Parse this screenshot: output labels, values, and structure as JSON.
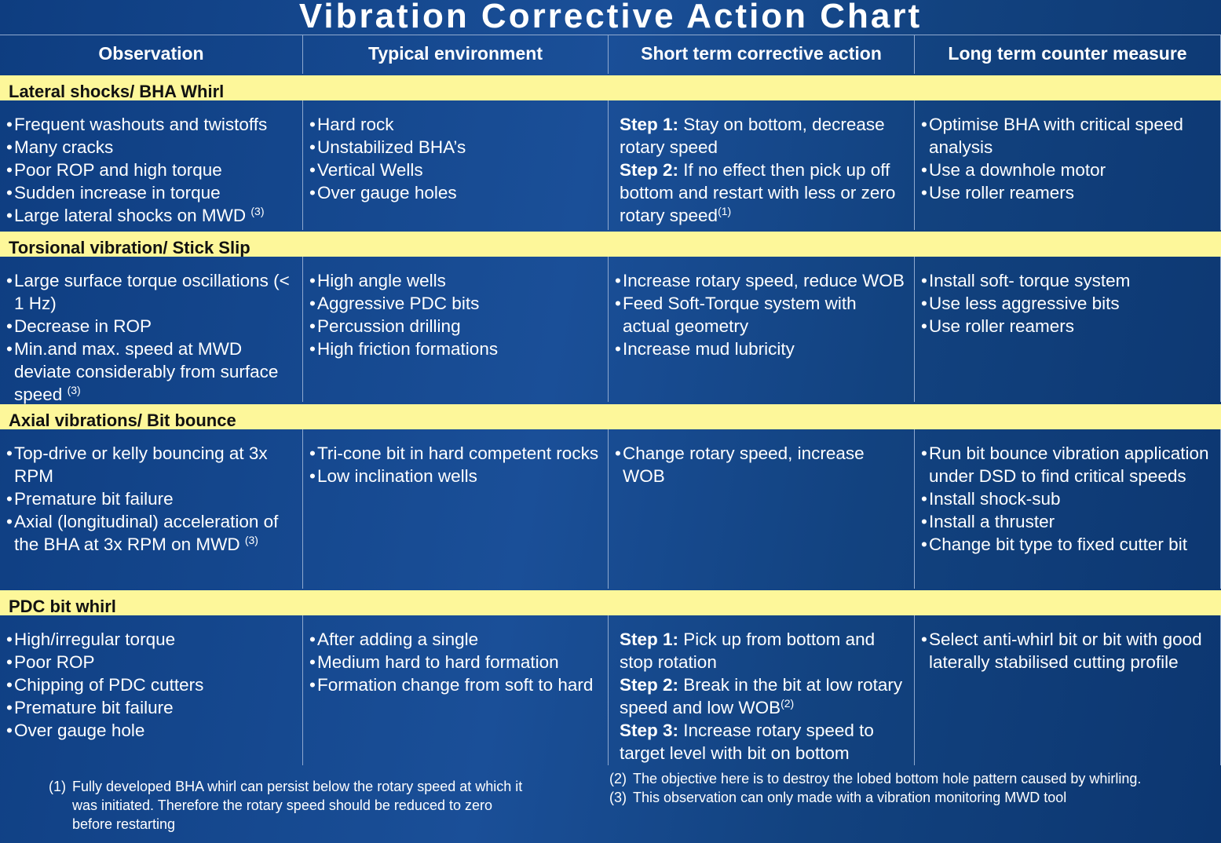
{
  "title": "Vibration Corrective Action Chart",
  "headers": [
    "Observation",
    "Typical environment",
    "Short term corrective action",
    "Long term counter measure"
  ],
  "sections": [
    {
      "title": "Lateral shocks/ BHA Whirl",
      "cells": [
        [
          "Frequent washouts and twistoffs",
          "Many cracks",
          "Poor ROP and high torque",
          "Sudden increase in torque",
          {
            "text": "Large lateral shocks on MWD",
            "sup": "(3)"
          }
        ],
        [
          "Hard rock",
          "Unstabilized BHA’s",
          "Vertical Wells",
          "Over gauge holes"
        ],
        [
          {
            "step": "Step 1:",
            "text": "Stay on bottom, decrease rotary speed"
          },
          {
            "step": "Step 2:",
            "text": "If no effect then pick up off bottom and restart with less or zero rotary speed",
            "sup": "(1)"
          }
        ],
        [
          "Optimise BHA with critical speed analysis",
          "Use a downhole motor",
          "Use roller reamers"
        ]
      ]
    },
    {
      "title": "Torsional vibration/ Stick Slip",
      "cells": [
        [
          "Large surface torque oscillations (< 1 Hz)",
          "Decrease in ROP",
          {
            "text": "Min.and max. speed at MWD deviate considerably from surface speed",
            "sup": "(3)"
          }
        ],
        [
          "High angle wells",
          "Aggressive PDC bits",
          "Percussion drilling",
          "High friction formations"
        ],
        [
          "Increase rotary speed, reduce WOB",
          "Feed Soft-Torque system with actual geometry",
          "Increase mud lubricity"
        ],
        [
          "Install soft- torque system",
          "Use less aggressive bits",
          "Use roller reamers"
        ]
      ]
    },
    {
      "title": "Axial vibrations/ Bit bounce",
      "cells": [
        [
          "Top-drive or kelly bouncing at 3x RPM",
          "Premature bit failure",
          {
            "text": "Axial (longitudinal) acceleration of the BHA at 3x RPM on MWD",
            "sup": "(3)"
          }
        ],
        [
          "Tri-cone bit in hard competent rocks",
          "Low inclination wells"
        ],
        [
          "Change rotary speed, increase WOB"
        ],
        [
          "Run bit bounce vibration application under DSD to find critical speeds",
          "Install shock-sub",
          "Install a thruster",
          "Change bit type to fixed cutter bit"
        ]
      ]
    },
    {
      "title": "PDC bit whirl",
      "cells": [
        [
          "High/irregular torque",
          "Poor ROP",
          "Chipping of PDC cutters",
          "Premature bit failure",
          "Over gauge hole"
        ],
        [
          "After adding a single",
          "Medium hard to hard formation",
          "Formation change from soft to hard"
        ],
        [
          {
            "step": "Step 1:",
            "text": "Pick up from bottom and stop rotation"
          },
          {
            "step": "Step 2:",
            "text": "Break in the bit at low rotary speed and low WOB",
            "sup": "(2)"
          },
          {
            "step": "Step 3:",
            "text": "Increase rotary speed to target level with bit on bottom"
          }
        ],
        [
          "Select anti-whirl bit or bit with good laterally stabilised cutting profile"
        ]
      ]
    }
  ],
  "footnotes": {
    "left": [
      {
        "label": "(1)",
        "text": "Fully developed BHA whirl can persist below the rotary speed at which it was initiated. Therefore the rotary speed should be reduced to zero before restarting"
      }
    ],
    "right": [
      {
        "label": "(2)",
        "text": "The objective here is to destroy the lobed bottom hole pattern caused by whirling."
      },
      {
        "label": "(3)",
        "text": "This observation can only made with a vibration monitoring MWD tool"
      }
    ]
  }
}
